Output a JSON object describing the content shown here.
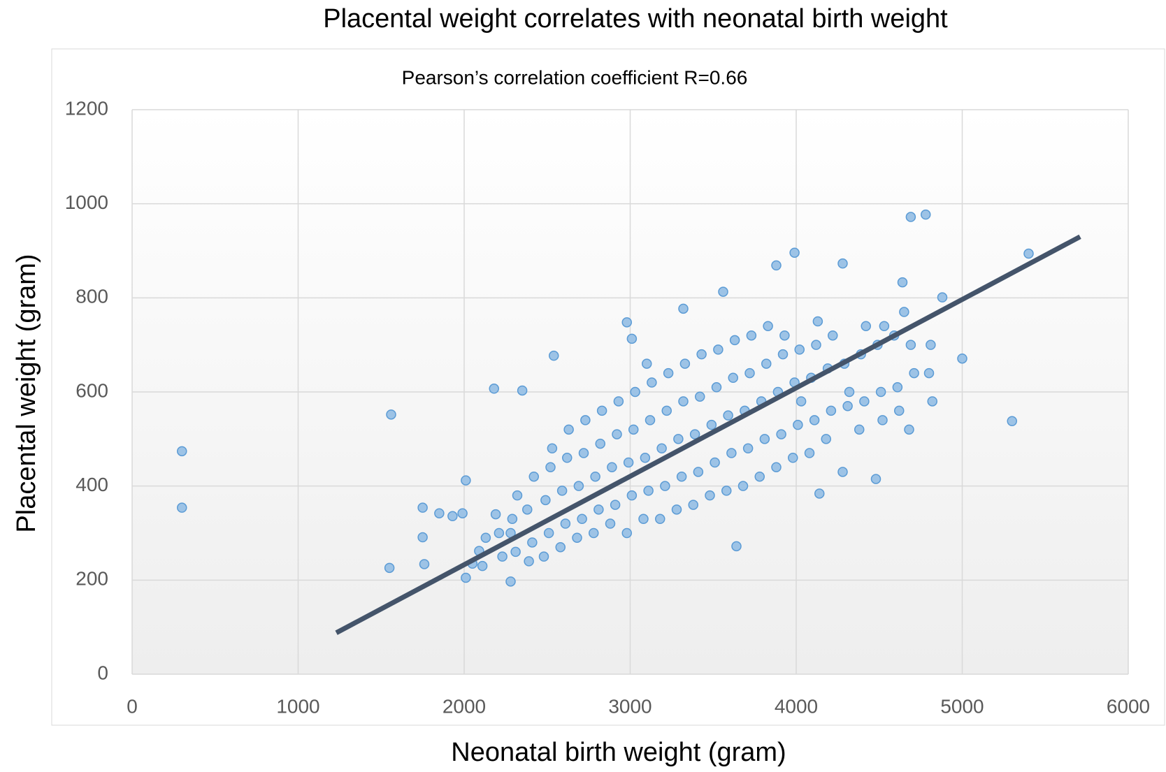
{
  "chart_data": {
    "type": "scatter",
    "title": "Placental weight correlates with neonatal birth weight",
    "annotation": "Pearson’s correlation coefficient R=0.66",
    "x_label": "Neonatal birth weight (gram)",
    "y_label": "Placental weight (gram)",
    "xlim": [
      0,
      6000
    ],
    "xticks": [
      0,
      1000,
      2000,
      3000,
      4000,
      5000,
      6000
    ],
    "ylim": [
      0,
      1200
    ],
    "yticks": [
      0,
      200,
      400,
      600,
      800,
      1000,
      1200
    ],
    "grid": true,
    "color": "#9dc3e6",
    "edge_color": "#5b9bd5",
    "x": [
      300,
      300,
      1560,
      1550,
      1750,
      1750,
      1760,
      1850,
      1930,
      1990,
      2010,
      2010,
      2180,
      2350,
      2540,
      2980,
      3010,
      3320,
      3560,
      3880,
      3990,
      4280,
      4690,
      4780,
      5400,
      5300,
      5000,
      4880,
      3640,
      4140,
      4480,
      2280,
      2050,
      4640,
      2110,
      2130,
      2090,
      2210,
      2230,
      2190,
      2310,
      2290,
      2320,
      2280,
      2410,
      2380,
      2420,
      2390,
      2510,
      2490,
      2520,
      2480,
      2530,
      2610,
      2590,
      2620,
      2580,
      2630,
      2710,
      2690,
      2720,
      2680,
      2730,
      2810,
      2790,
      2820,
      2780,
      2830,
      2910,
      2890,
      2920,
      2880,
      2930,
      3010,
      2990,
      3020,
      2980,
      3030,
      3110,
      3090,
      3120,
      3080,
      3130,
      3100,
      3210,
      3190,
      3220,
      3180,
      3230,
      3310,
      3290,
      3320,
      3280,
      3330,
      3410,
      3390,
      3420,
      3380,
      3430,
      3510,
      3490,
      3520,
      3480,
      3530,
      3610,
      3590,
      3620,
      3580,
      3630,
      3710,
      3690,
      3720,
      3680,
      3730,
      3810,
      3790,
      3820,
      3780,
      3830,
      3910,
      3890,
      3920,
      3880,
      3930,
      4010,
      3990,
      4020,
      3980,
      4030,
      4110,
      4090,
      4120,
      4080,
      4130,
      4210,
      4190,
      4220,
      4180,
      4310,
      4290,
      4320,
      4280,
      4410,
      4390,
      4420,
      4380,
      4510,
      4490,
      4520,
      4530,
      4610,
      4590,
      4620,
      4650,
      4710,
      4690,
      4680,
      4810,
      4820,
      4800
    ],
    "values": [
      474,
      354,
      552,
      226,
      354,
      291,
      234,
      342,
      336,
      342,
      412,
      205,
      607,
      603,
      677,
      748,
      713,
      777,
      813,
      869,
      896,
      873,
      972,
      977,
      894,
      538,
      671,
      801,
      272,
      384,
      415,
      197,
      235,
      833,
      230,
      290,
      262,
      300,
      250,
      340,
      260,
      330,
      380,
      300,
      280,
      350,
      420,
      240,
      300,
      370,
      440,
      250,
      480,
      320,
      390,
      460,
      270,
      520,
      330,
      400,
      470,
      290,
      540,
      350,
      420,
      490,
      300,
      560,
      360,
      440,
      510,
      320,
      580,
      380,
      450,
      520,
      300,
      600,
      390,
      460,
      540,
      330,
      620,
      660,
      400,
      480,
      560,
      330,
      640,
      420,
      500,
      580,
      350,
      660,
      430,
      510,
      590,
      360,
      680,
      450,
      530,
      610,
      380,
      690,
      470,
      550,
      630,
      390,
      710,
      480,
      560,
      640,
      400,
      720,
      500,
      580,
      660,
      420,
      740,
      510,
      600,
      680,
      440,
      720,
      530,
      620,
      690,
      460,
      580,
      540,
      630,
      700,
      470,
      750,
      560,
      650,
      720,
      500,
      570,
      660,
      600,
      430,
      580,
      680,
      740,
      520,
      600,
      700,
      540,
      740,
      610,
      720,
      560,
      770,
      640,
      700,
      520,
      700,
      580,
      640
    ],
    "trendline": {
      "color": "#44546a",
      "x": [
        1230,
        5710
      ],
      "values": [
        88,
        930
      ]
    }
  }
}
